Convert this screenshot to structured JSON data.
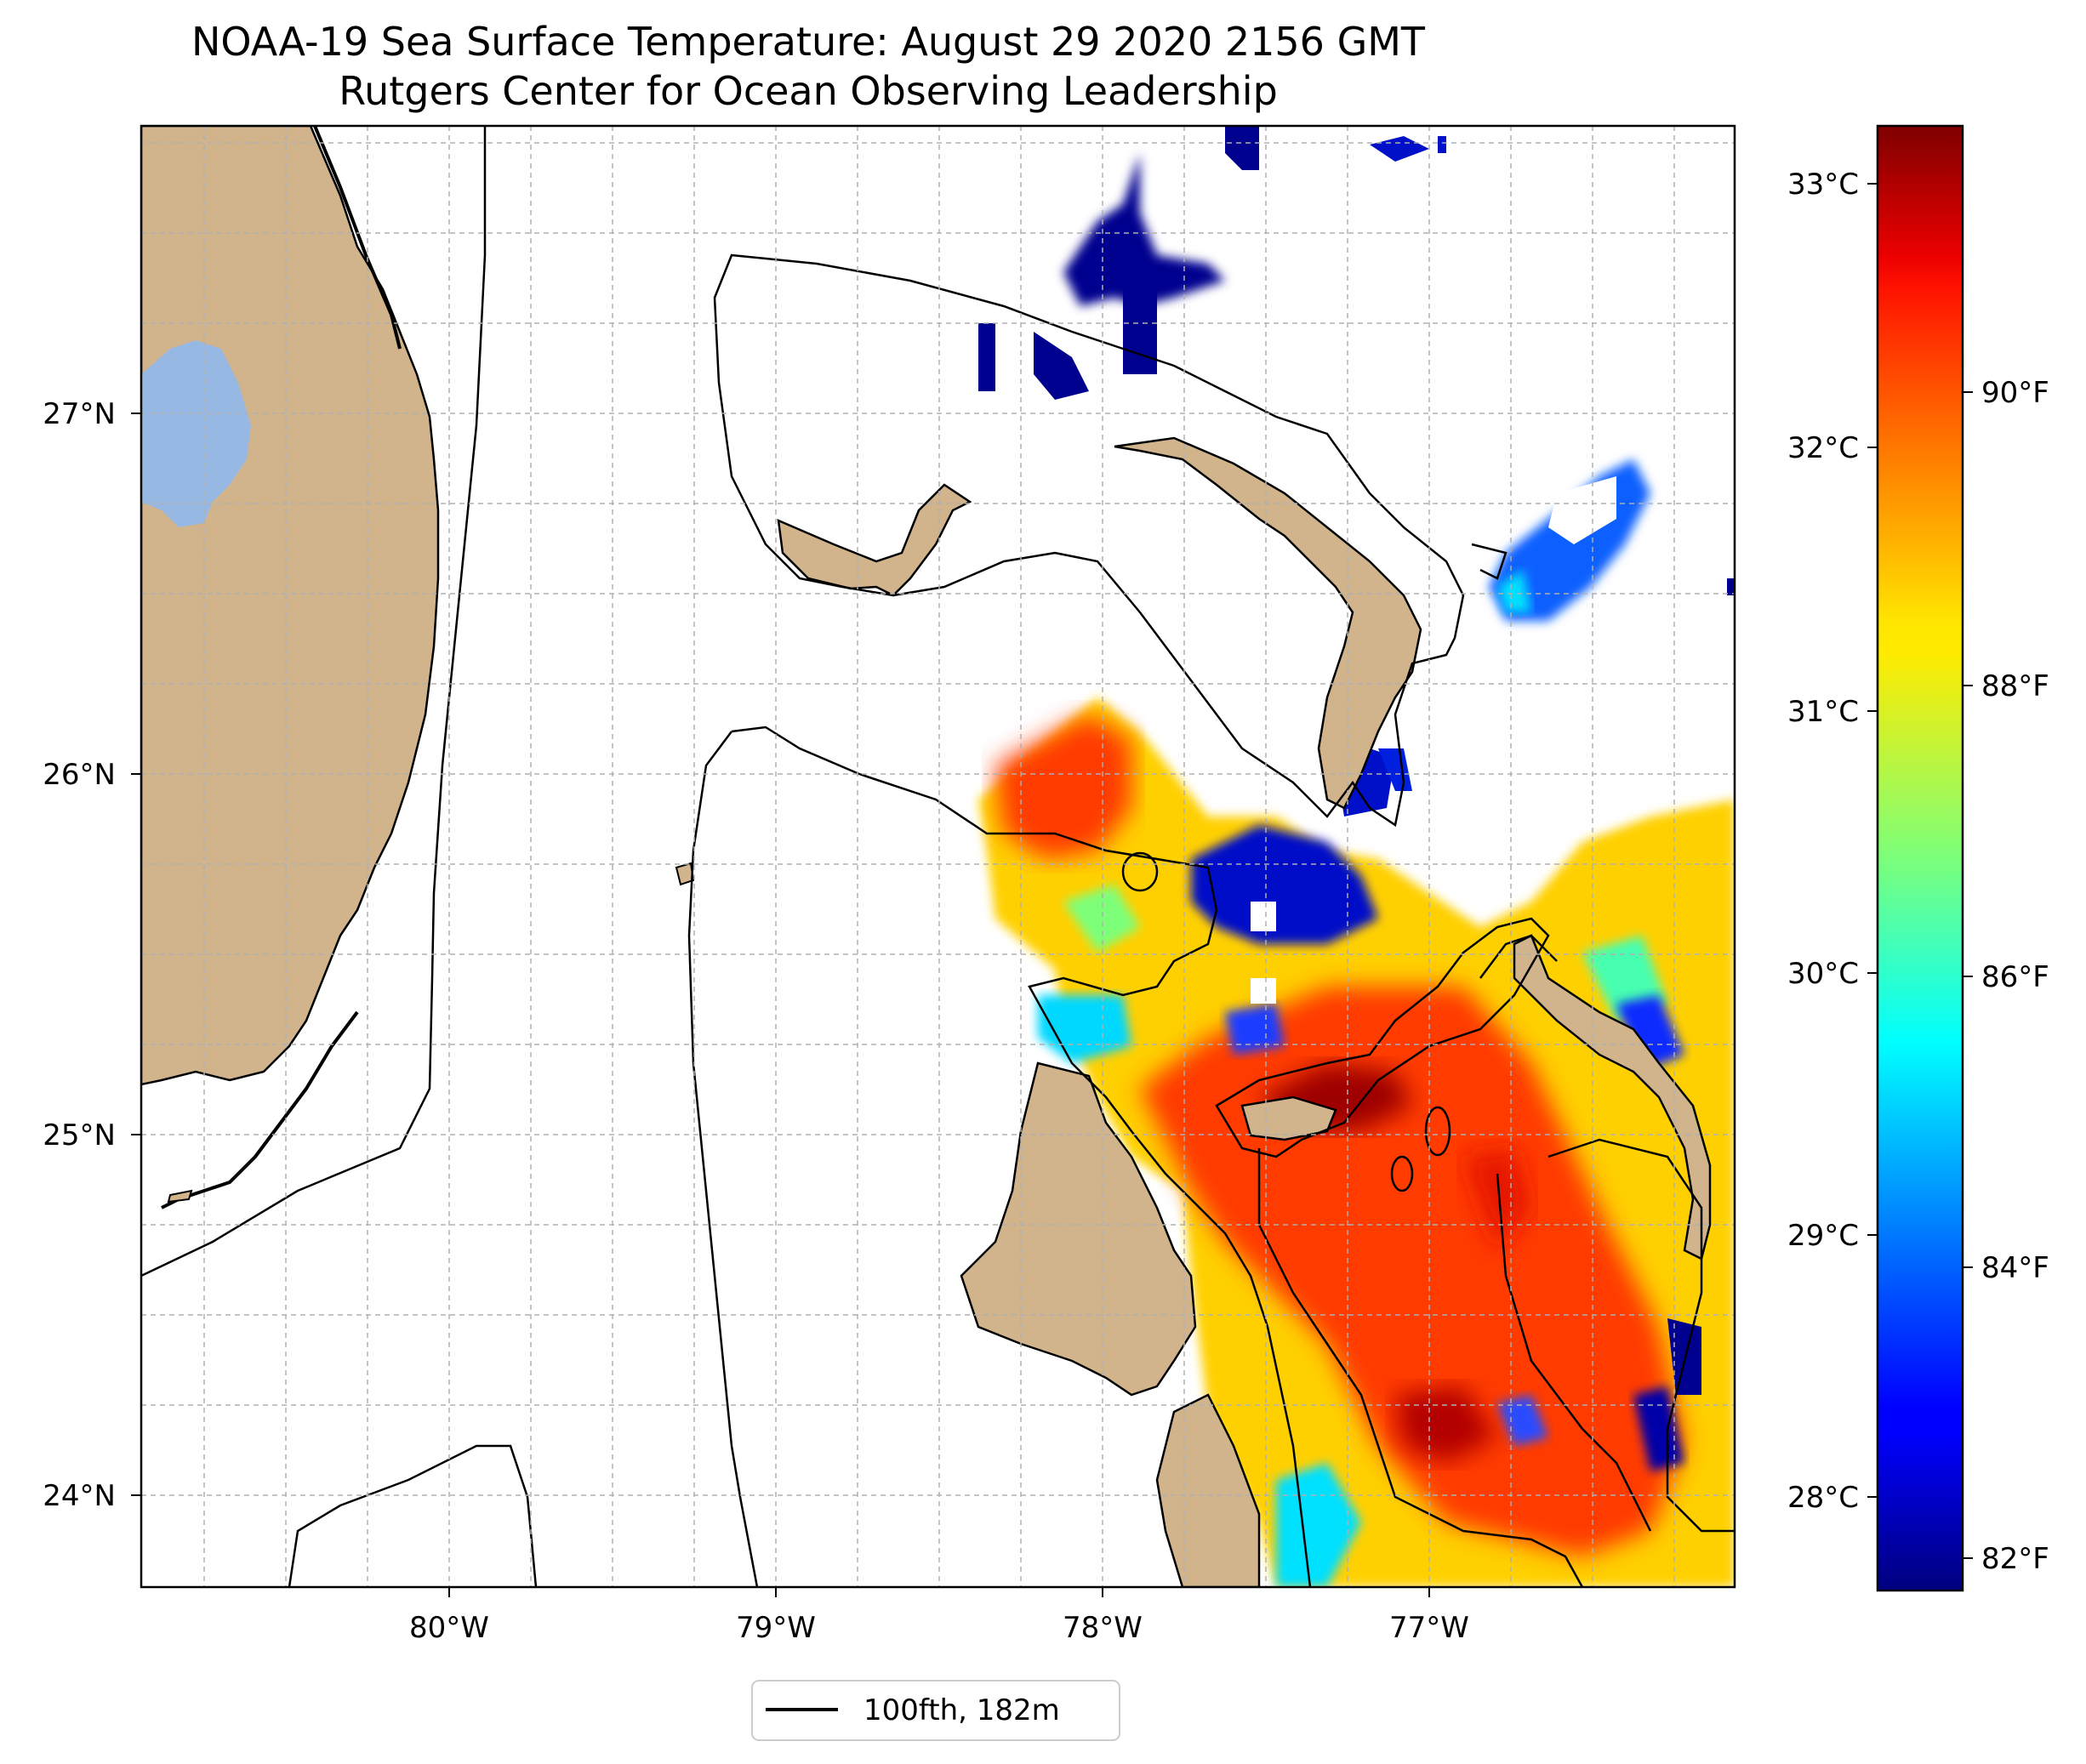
{
  "title": {
    "line1": "NOAA-19 Sea Surface Temperature: August 29 2020 2156 GMT",
    "line2": "Rutgers Center for Ocean Observing Leadership"
  },
  "map": {
    "lon_labels": [
      "80°W",
      "79°W",
      "78°W",
      "77°W"
    ],
    "lat_labels": [
      "27°N",
      "26°N",
      "25°N",
      "24°N"
    ],
    "gridlines": true,
    "colors": {
      "land": "#d2b48c",
      "lake": "#98b8e4",
      "ocean_no_data": "#ffffff",
      "grid": "#b0b0b0"
    }
  },
  "colorbar": {
    "colormap": "jet",
    "celsius_ticks": [
      "33°C",
      "32°C",
      "31°C",
      "30°C",
      "29°C",
      "28°C"
    ],
    "fahrenheit_ticks": [
      "90°F",
      "88°F",
      "86°F",
      "84°F",
      "82°F"
    ]
  },
  "legend": {
    "label": "100fth, 182m",
    "line_color": "#000000"
  }
}
